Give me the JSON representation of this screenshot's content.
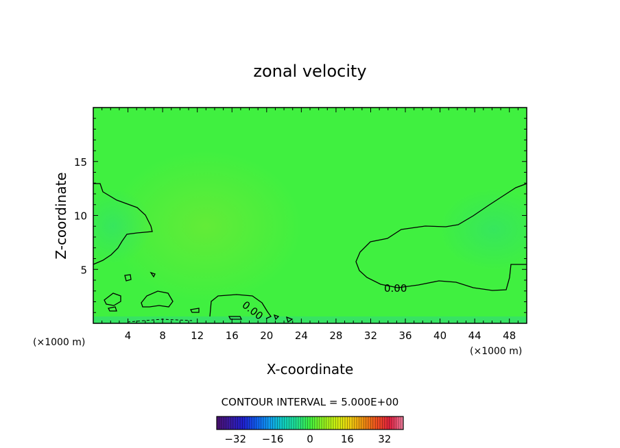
{
  "chart_data": {
    "type": "heatmap",
    "title": "zonal velocity",
    "xlabel": "X-coordinate",
    "ylabel": "Z-coordinate",
    "x_unit_left": "(×1000 m)",
    "x_unit_right": "(×1000 m)",
    "xlim": [
      0,
      50
    ],
    "ylim": [
      0,
      20
    ],
    "x_ticks": [
      4,
      8,
      12,
      16,
      20,
      24,
      28,
      32,
      36,
      40,
      44,
      48
    ],
    "y_ticks": [
      5,
      10,
      15
    ],
    "contour_labels": [
      "0.00",
      "0.00"
    ],
    "contour_interval_text": "CONTOUR INTERVAL = 5.000E+00",
    "colorbar": {
      "ticks": [
        -32,
        -16,
        0,
        16,
        32
      ],
      "range": [
        -40,
        40
      ],
      "colors": [
        "#4b1070",
        "#3a1aa0",
        "#2020d0",
        "#1060f0",
        "#10a0f0",
        "#10d0c0",
        "#20e090",
        "#40f040",
        "#90f020",
        "#d0f010",
        "#f0d010",
        "#f09010",
        "#f05020",
        "#e02040",
        "#f080a0"
      ]
    },
    "field_color": "#40f040"
  }
}
